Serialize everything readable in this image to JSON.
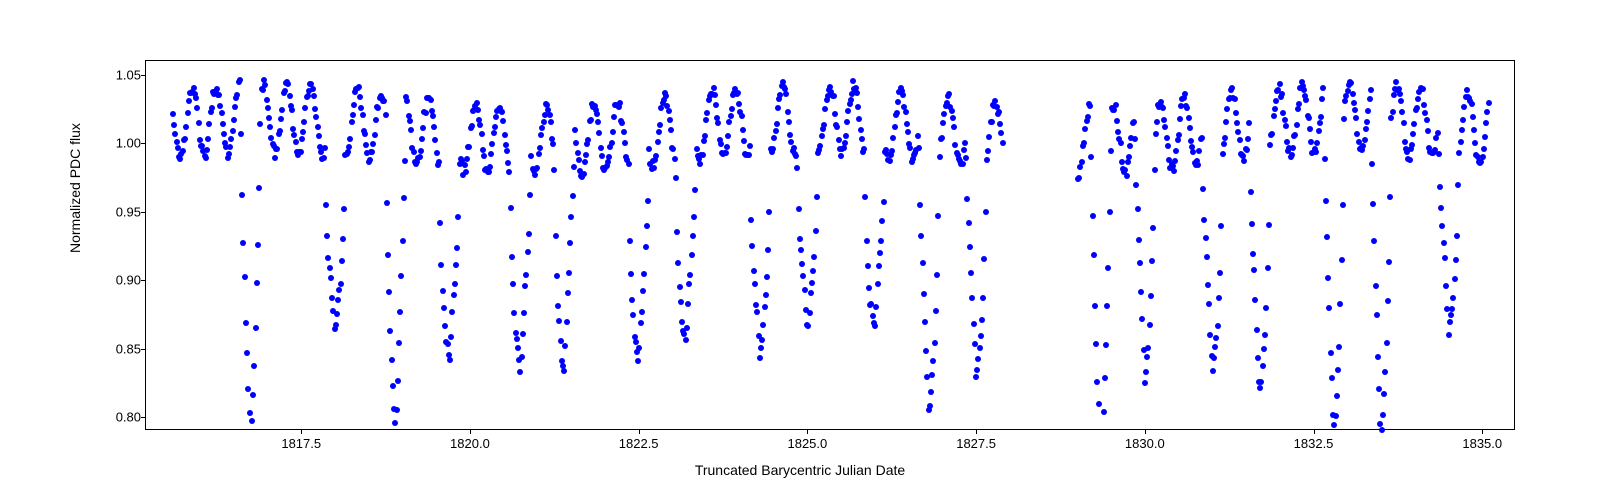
{
  "chart": {
    "type": "scatter",
    "xlabel": "Truncated Barycentric Julian Date",
    "ylabel": "Normalized PDC flux",
    "xlim": [
      1815.2,
      1835.5
    ],
    "ylim": [
      0.79,
      1.06
    ],
    "xticks": [
      1817.5,
      1820.0,
      1822.5,
      1825.0,
      1827.5,
      1830.0,
      1832.5,
      1835.0
    ],
    "xtick_labels": [
      "1817.5",
      "1820.0",
      "1822.5",
      "1825.0",
      "1827.5",
      "1830.0",
      "1832.5",
      "1835.0"
    ],
    "yticks": [
      0.8,
      0.85,
      0.9,
      0.95,
      1.0,
      1.05
    ],
    "ytick_labels": [
      "0.80",
      "0.85",
      "0.90",
      "0.95",
      "1.00",
      "1.05"
    ],
    "background_color": "#ffffff",
    "border_color": "#000000",
    "marker_color": "#0000ff",
    "marker_size": 6,
    "label_fontsize": 14,
    "tick_fontsize": 13,
    "data_gap": [
      1827.9,
      1829.0
    ],
    "oscillation_period": 0.35,
    "oscillation_amplitude": 0.025,
    "baseline_flux": 1.01,
    "transit_period": 1.25,
    "transit_depths": [
      0.8,
      0.83,
      0.81,
      0.82,
      0.82,
      0.84,
      0.82,
      0.83,
      0.81,
      0.83,
      0.835,
      0.79,
      0.82,
      0.8,
      0.845,
      0.82,
      0.8,
      0.79,
      0.79,
      0.85
    ],
    "transit_centers": [
      1816.75,
      1818.0,
      1818.9,
      1819.7,
      1820.75,
      1821.4,
      1822.5,
      1823.2,
      1824.3,
      1825.0,
      1826.0,
      1826.8,
      1827.5,
      1829.35,
      1830.0,
      1831.0,
      1831.7,
      1832.8,
      1833.5,
      1834.5
    ],
    "transit_width": 0.15
  }
}
